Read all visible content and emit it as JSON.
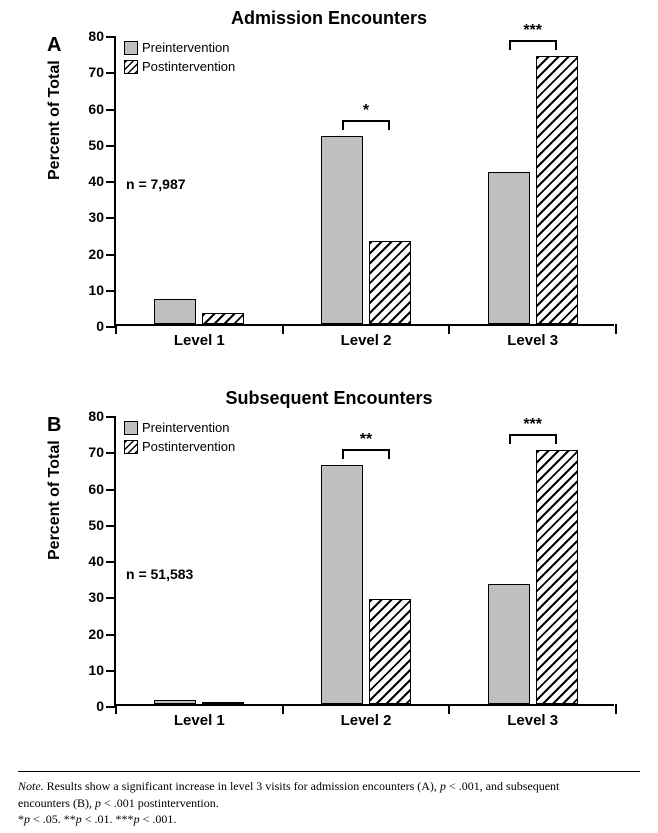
{
  "panelA": {
    "letter": "A",
    "title": "Admission Encounters",
    "yaxis_title": "Percent of Total",
    "n_label": "n = 7,987",
    "ylim": [
      0,
      80
    ],
    "ytick_step": 10,
    "categories": [
      "Level 1",
      "Level 2",
      "Level 3"
    ],
    "series": [
      {
        "name": "Preintervention",
        "key": "pre",
        "values": [
          7,
          52,
          42
        ]
      },
      {
        "name": "Postintervention",
        "key": "post",
        "values": [
          3,
          23,
          74
        ]
      }
    ],
    "sig": [
      {
        "group": 1,
        "label": "*"
      },
      {
        "group": 2,
        "label": "***"
      }
    ],
    "legend": [
      "Preintervention",
      "Postintervention"
    ],
    "colors": {
      "pre": "#bfbfbf",
      "post_pattern": "diagonal-hatch"
    }
  },
  "panelB": {
    "letter": "B",
    "title": "Subsequent Encounters",
    "yaxis_title": "Percent of Total",
    "n_label": "n = 51,583",
    "ylim": [
      0,
      80
    ],
    "ytick_step": 10,
    "categories": [
      "Level 1",
      "Level 2",
      "Level 3"
    ],
    "series": [
      {
        "name": "Preintervention",
        "key": "pre",
        "values": [
          1,
          66,
          33
        ]
      },
      {
        "name": "Postintervention",
        "key": "post",
        "values": [
          0.5,
          29,
          70
        ]
      }
    ],
    "sig": [
      {
        "group": 1,
        "label": "**"
      },
      {
        "group": 2,
        "label": "***"
      }
    ],
    "legend": [
      "Preintervention",
      "Postintervention"
    ],
    "colors": {
      "pre": "#bfbfbf",
      "post_pattern": "diagonal-hatch"
    }
  },
  "footnote": {
    "line1_a": "Note.",
    "line1_b": " Results show a significant increase in level 3 visits for admission encounters (A), ",
    "line1_c": "p",
    "line1_d": " < .001, and subsequent",
    "line2_a": "encounters (B), ",
    "line2_b": "p",
    "line2_c": " < .001 postintervention.",
    "line3_a": "*",
    "line3_b": "p",
    "line3_c": " < .05. **",
    "line3_d": "p",
    "line3_e": " < .01. ***",
    "line3_f": "p",
    "line3_g": " < .001."
  }
}
